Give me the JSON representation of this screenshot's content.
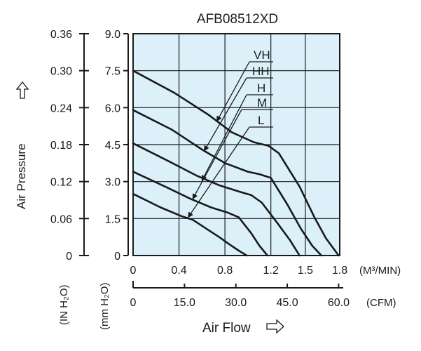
{
  "chart_data": {
    "type": "line",
    "title": "AFB08512XD",
    "xlabel": "Air Flow",
    "ylabel": "Air Pressure",
    "x_unit_primary": "(M³/MIN)",
    "x_unit_secondary": "(CFM)",
    "y_unit_inh2o": "(IN H₂O)",
    "y_unit_mmh2o": "(mm H₂O)",
    "xlim": [
      0,
      1.8
    ],
    "ylim": [
      0,
      9.0
    ],
    "x_ticks": [
      0,
      0.4,
      0.8,
      1.2,
      1.5,
      1.8
    ],
    "x_tick_labels": [
      "0",
      "0.4",
      "0.8",
      "1.2",
      "1.5",
      "1.8"
    ],
    "cfm_ticks": [
      0,
      15.0,
      30.0,
      45.0,
      60.0
    ],
    "cfm_tick_labels": [
      "0",
      "15.0",
      "30.0",
      "45.0",
      "60.0"
    ],
    "y_ticks": [
      0,
      1.5,
      3.0,
      4.5,
      6.0,
      7.5,
      9.0
    ],
    "y_tick_labels_mm": [
      "0",
      "1.5",
      "3.0",
      "4.5",
      "6.0",
      "7.5",
      "9.0"
    ],
    "y_tick_labels_in": [
      "0",
      "0.06",
      "0.12",
      "0.18",
      "0.24",
      "0.30",
      "0.36"
    ],
    "grid": true,
    "background": "#dcf0fa",
    "line_color": "#1a1a1a",
    "series": [
      {
        "name": "VH",
        "x": [
          0,
          0.36,
          0.66,
          0.86,
          1.05,
          1.18,
          1.27,
          1.45,
          1.58,
          1.68,
          1.79
        ],
        "y": [
          7.5,
          6.6,
          5.7,
          5.0,
          4.6,
          4.45,
          4.15,
          2.8,
          1.55,
          0.7,
          0
        ]
      },
      {
        "name": "HH",
        "x": [
          0,
          0.34,
          0.6,
          0.8,
          1.0,
          1.1,
          1.2,
          1.34,
          1.46,
          1.56,
          1.64
        ],
        "y": [
          5.9,
          5.1,
          4.3,
          3.75,
          3.4,
          3.3,
          3.15,
          2.1,
          1.1,
          0.4,
          0
        ]
      },
      {
        "name": "H",
        "x": [
          0,
          0.3,
          0.55,
          0.75,
          0.92,
          1.03,
          1.12,
          1.26,
          1.37,
          1.45
        ],
        "y": [
          4.55,
          3.85,
          3.25,
          2.85,
          2.6,
          2.45,
          2.15,
          1.3,
          0.6,
          0
        ]
      },
      {
        "name": "M",
        "x": [
          0,
          0.3,
          0.5,
          0.68,
          0.82,
          0.92,
          1.03,
          1.1,
          1.17
        ],
        "y": [
          3.4,
          2.75,
          2.3,
          1.95,
          1.75,
          1.55,
          0.9,
          0.4,
          0
        ]
      },
      {
        "name": "L",
        "x": [
          0,
          0.24,
          0.42,
          0.52,
          0.65,
          0.75,
          0.84,
          0.92,
          0.99
        ],
        "y": [
          2.5,
          1.95,
          1.6,
          1.45,
          1.05,
          0.75,
          0.45,
          0.2,
          0
        ]
      }
    ]
  }
}
